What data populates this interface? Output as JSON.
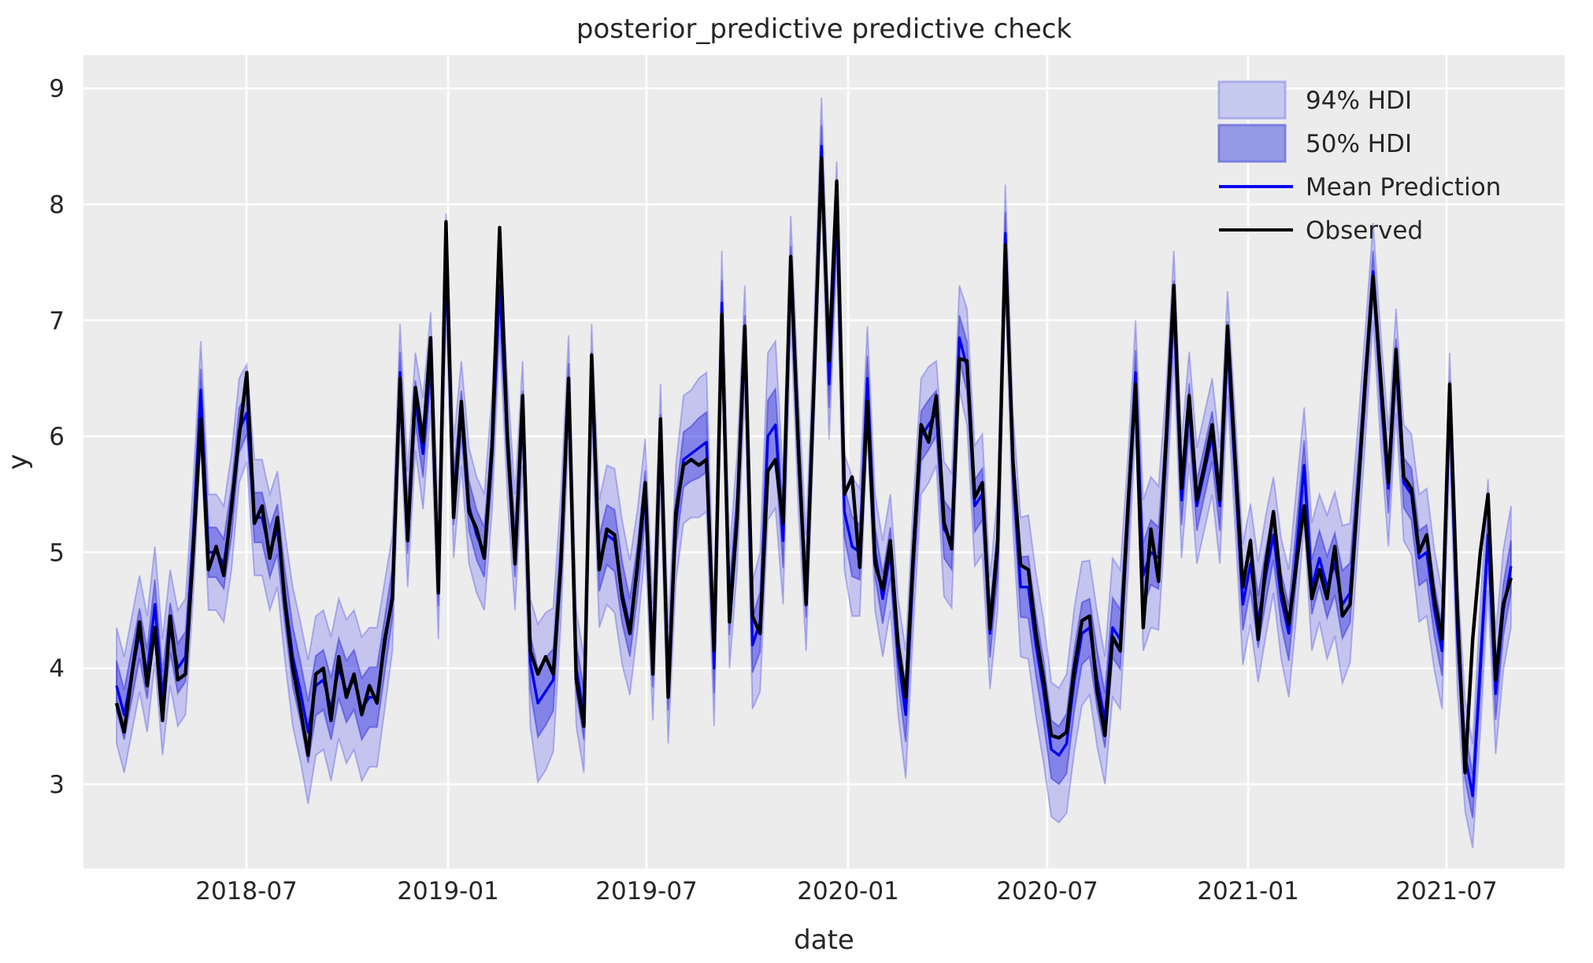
{
  "figure": {
    "title": "posterior_predictive predictive check",
    "xlabel": "date",
    "ylabel": "y"
  },
  "colors": {
    "axes_background": "#ececec",
    "grid": "#ffffff",
    "text": "#262626",
    "observed_line": "#000000",
    "mean_line": "#0000ee",
    "hdi94_fill": "rgba(0,0,255,0.17)",
    "hdi94_edge": "rgba(50,50,225,0.30)",
    "hdi50_fill": "rgba(20,20,220,0.37)",
    "hdi50_edge": "rgba(30,30,210,0.42)",
    "legend_swatch94_fill": "#c6c9ee",
    "legend_swatch94_edge": "#a9ade8",
    "legend_swatch50_fill": "#9699e5",
    "legend_swatch50_edge": "#7a7fe0"
  },
  "chart_data": {
    "type": "line",
    "title": "posterior_predictive predictive check",
    "xlabel": "date",
    "ylabel": "y",
    "grid": true,
    "legend_position": "upper right",
    "x_start_date": "2018-03-04",
    "x_freq_days": 7,
    "n_points": 183,
    "x_tick_labels": [
      "2018-07",
      "2019-01",
      "2019-07",
      "2020-01",
      "2020-07",
      "2021-01",
      "2021-07"
    ],
    "y_tick_labels": [
      "3",
      "4",
      "5",
      "6",
      "7",
      "8",
      "9"
    ],
    "ylim": [
      2.1,
      9.3
    ],
    "legend": [
      {
        "label": "94% HDI",
        "kind": "band-light"
      },
      {
        "label": "50% HDI",
        "kind": "band-dark"
      },
      {
        "label": "Mean Prediction",
        "kind": "line-blue"
      },
      {
        "label": "Observed",
        "kind": "line-black"
      }
    ],
    "series": [
      {
        "name": "Observed",
        "type": "line",
        "color": "#000000",
        "values": [
          3.7,
          3.45,
          3.95,
          4.4,
          3.85,
          4.35,
          3.55,
          4.45,
          3.9,
          3.95,
          5.0,
          6.15,
          4.85,
          5.05,
          4.8,
          5.4,
          6.0,
          6.55,
          5.25,
          5.4,
          4.95,
          5.3,
          4.55,
          4.0,
          3.65,
          3.25,
          3.95,
          4.0,
          3.55,
          4.1,
          3.75,
          3.95,
          3.6,
          3.85,
          3.7,
          4.25,
          4.6,
          6.5,
          5.1,
          6.42,
          5.95,
          6.85,
          4.65,
          7.85,
          5.3,
          6.3,
          5.35,
          5.2,
          4.95,
          5.9,
          7.8,
          6.0,
          4.9,
          6.35,
          4.15,
          3.95,
          4.1,
          3.95,
          4.9,
          6.5,
          3.9,
          3.5,
          6.7,
          4.85,
          5.2,
          5.15,
          4.6,
          4.3,
          4.9,
          5.6,
          3.95,
          6.15,
          3.75,
          5.35,
          5.75,
          5.8,
          5.75,
          5.8,
          4.15,
          7.05,
          4.4,
          5.3,
          6.95,
          4.45,
          4.3,
          5.7,
          5.8,
          5.25,
          7.55,
          5.9,
          4.55,
          6.4,
          8.4,
          6.65,
          8.2,
          5.5,
          5.65,
          4.87,
          6.3,
          4.9,
          4.68,
          5.1,
          4.2,
          3.75,
          5.0,
          6.1,
          5.95,
          6.35,
          5.26,
          5.03,
          6.67,
          6.65,
          5.47,
          5.6,
          4.34,
          5.09,
          7.65,
          5.78,
          4.89,
          4.85,
          4.3,
          3.9,
          3.42,
          3.4,
          3.45,
          4.0,
          4.41,
          4.45,
          3.8,
          3.42,
          4.27,
          4.15,
          5.4,
          6.45,
          4.35,
          5.2,
          4.75,
          6.0,
          7.3,
          5.55,
          6.35,
          5.45,
          5.75,
          6.1,
          5.45,
          6.95,
          5.8,
          4.7,
          5.1,
          4.25,
          4.9,
          5.35,
          4.7,
          4.38,
          4.9,
          5.4,
          4.6,
          4.85,
          4.6,
          5.05,
          4.45,
          4.55,
          5.5,
          6.5,
          7.38,
          6.5,
          5.6,
          6.75,
          5.65,
          5.55,
          5.0,
          5.15,
          4.6,
          4.25,
          6.45,
          4.5,
          3.1,
          4.25,
          5.0,
          5.5,
          3.9,
          4.55,
          4.78
        ]
      },
      {
        "name": "Mean Prediction",
        "type": "line",
        "color": "#0000ee",
        "values": [
          3.85,
          3.6,
          3.95,
          4.3,
          3.95,
          4.55,
          3.75,
          4.35,
          4.0,
          4.1,
          5.1,
          6.4,
          5.0,
          5.0,
          4.9,
          5.35,
          6.05,
          6.2,
          5.3,
          5.3,
          5.0,
          5.2,
          4.6,
          4.1,
          3.8,
          3.45,
          3.85,
          3.9,
          3.65,
          4.0,
          3.8,
          3.9,
          3.65,
          3.75,
          3.75,
          4.2,
          4.65,
          6.55,
          5.2,
          6.3,
          5.85,
          6.65,
          4.75,
          7.5,
          5.45,
          6.2,
          5.4,
          5.15,
          5.0,
          5.85,
          7.3,
          6.0,
          5.0,
          6.2,
          4.05,
          3.7,
          3.8,
          3.9,
          4.95,
          6.45,
          4.0,
          3.6,
          6.55,
          4.9,
          5.15,
          5.1,
          4.65,
          4.35,
          4.85,
          5.5,
          4.05,
          6.0,
          3.85,
          5.25,
          5.8,
          5.85,
          5.9,
          5.95,
          4.0,
          7.15,
          4.5,
          5.35,
          6.85,
          4.2,
          4.4,
          6.0,
          6.1,
          5.1,
          7.45,
          5.85,
          4.65,
          6.45,
          8.5,
          6.45,
          7.95,
          5.35,
          5.05,
          5.0,
          6.5,
          5.0,
          4.6,
          5.0,
          4.1,
          3.6,
          4.9,
          6.0,
          6.1,
          6.2,
          5.2,
          5.1,
          6.85,
          6.6,
          5.4,
          5.5,
          4.3,
          5.0,
          7.75,
          5.7,
          4.7,
          4.7,
          4.2,
          3.8,
          3.3,
          3.25,
          3.35,
          3.9,
          4.3,
          4.35,
          3.9,
          3.55,
          4.35,
          4.25,
          5.3,
          6.55,
          4.8,
          5.0,
          4.95,
          5.9,
          7.15,
          5.45,
          6.25,
          5.4,
          5.7,
          6.0,
          5.4,
          6.8,
          5.7,
          4.55,
          4.9,
          4.4,
          4.8,
          5.15,
          4.6,
          4.3,
          5.0,
          5.75,
          4.7,
          4.95,
          4.7,
          4.9,
          4.55,
          4.65,
          5.55,
          6.45,
          7.42,
          6.4,
          5.55,
          6.65,
          5.6,
          5.5,
          4.95,
          5.0,
          4.5,
          4.15,
          6.3,
          4.3,
          3.25,
          2.9,
          4.0,
          5.15,
          3.78,
          4.5,
          4.88
        ]
      },
      {
        "name": "94% HDI",
        "type": "band",
        "around": "Mean Prediction",
        "halfwidth": [
          0.5,
          0.5,
          0.5,
          0.5,
          0.5,
          0.5,
          0.5,
          0.5,
          0.5,
          0.5,
          0.5,
          0.42,
          0.5,
          0.5,
          0.5,
          0.5,
          0.45,
          0.42,
          0.5,
          0.5,
          0.5,
          0.5,
          0.55,
          0.6,
          0.6,
          0.62,
          0.6,
          0.6,
          0.62,
          0.6,
          0.62,
          0.6,
          0.62,
          0.6,
          0.6,
          0.55,
          0.5,
          0.42,
          0.5,
          0.42,
          0.48,
          0.42,
          0.5,
          0.42,
          0.5,
          0.45,
          0.5,
          0.5,
          0.5,
          0.5,
          0.42,
          0.5,
          0.5,
          0.45,
          0.55,
          0.68,
          0.68,
          0.62,
          0.55,
          0.42,
          0.5,
          0.5,
          0.42,
          0.55,
          0.6,
          0.62,
          0.62,
          0.58,
          0.52,
          0.48,
          0.5,
          0.45,
          0.5,
          0.5,
          0.55,
          0.55,
          0.6,
          0.6,
          0.5,
          0.45,
          0.5,
          0.5,
          0.45,
          0.55,
          0.6,
          0.72,
          0.72,
          0.55,
          0.45,
          0.5,
          0.5,
          0.45,
          0.42,
          0.48,
          0.42,
          0.5,
          0.6,
          0.55,
          0.45,
          0.5,
          0.5,
          0.5,
          0.5,
          0.55,
          0.55,
          0.5,
          0.5,
          0.45,
          0.58,
          0.58,
          0.45,
          0.5,
          0.52,
          0.52,
          0.48,
          0.5,
          0.42,
          0.5,
          0.6,
          0.62,
          0.62,
          0.62,
          0.58,
          0.58,
          0.6,
          0.62,
          0.62,
          0.58,
          0.58,
          0.55,
          0.6,
          0.6,
          0.52,
          0.45,
          0.65,
          0.65,
          0.62,
          0.52,
          0.45,
          0.5,
          0.48,
          0.5,
          0.5,
          0.5,
          0.5,
          0.45,
          0.5,
          0.52,
          0.52,
          0.52,
          0.52,
          0.5,
          0.52,
          0.55,
          0.55,
          0.5,
          0.55,
          0.55,
          0.62,
          0.62,
          0.68,
          0.6,
          0.52,
          0.48,
          0.42,
          0.48,
          0.5,
          0.45,
          0.5,
          0.52,
          0.55,
          0.55,
          0.52,
          0.5,
          0.42,
          0.5,
          0.48,
          0.45,
          0.55,
          0.48,
          0.52,
          0.52,
          0.52
        ]
      },
      {
        "name": "50% HDI",
        "type": "band",
        "around": "Mean Prediction",
        "halfwidth_ratio_of_94": 0.43
      }
    ]
  }
}
